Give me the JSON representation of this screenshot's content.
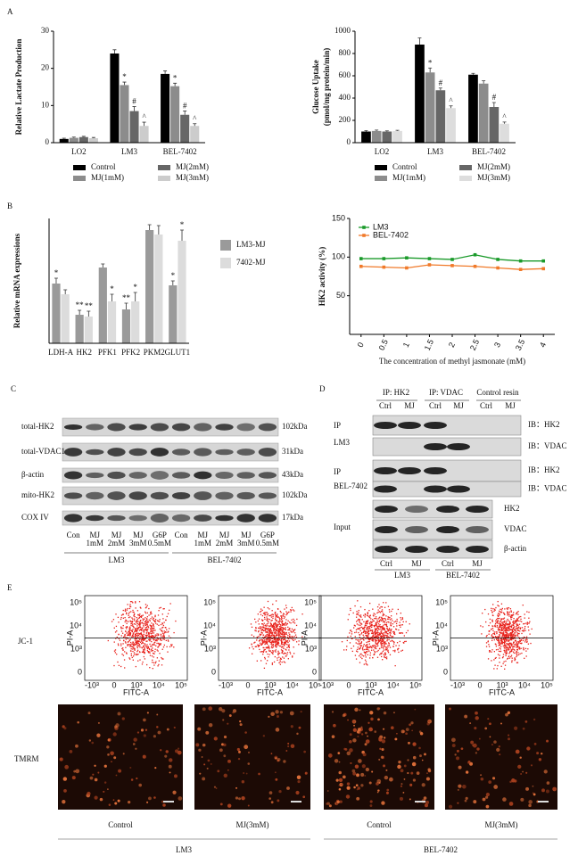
{
  "chart_data": [
    {
      "type": "bar",
      "ylabel": [
        "Relative Lactate Production"
      ],
      "categories": [
        "LO2",
        "LM3",
        "BEL-7402"
      ],
      "series": [
        {
          "name": "Control",
          "color": "#000000",
          "values": [
            1,
            24,
            18.5
          ],
          "errors": [
            0.2,
            1,
            0.8
          ],
          "marks": [
            null,
            null,
            null
          ]
        },
        {
          "name": "MJ(1mM)",
          "color": "#8c8c8c",
          "values": [
            1.3,
            15.5,
            15.2
          ],
          "errors": [
            0.2,
            0.8,
            0.8
          ],
          "marks": [
            null,
            "*",
            "*"
          ]
        },
        {
          "name": "MJ(2mM)",
          "color": "#666666",
          "values": [
            1.5,
            8.5,
            7.5
          ],
          "errors": [
            0.2,
            1.2,
            1
          ],
          "marks": [
            null,
            "#",
            "#"
          ]
        },
        {
          "name": "MJ(3mM)",
          "color": "#cccccc",
          "values": [
            1.2,
            4.5,
            4.5
          ],
          "errors": [
            0.2,
            1,
            0.6
          ],
          "marks": [
            null,
            "^",
            "^"
          ]
        }
      ],
      "ylim": [
        0,
        30
      ],
      "yticks": [
        0,
        10,
        20,
        30
      ],
      "legend": "bottom"
    },
    {
      "type": "bar",
      "ylabel": [
        "Glucose Uptake",
        "(pmol/mg protein/min)"
      ],
      "categories": [
        "LO2",
        "LM3",
        "BEL-7402"
      ],
      "series": [
        {
          "name": "Control",
          "color": "#000000",
          "values": [
            100,
            880,
            610
          ],
          "errors": [
            8,
            60,
            12
          ],
          "marks": [
            null,
            null,
            null
          ]
        },
        {
          "name": "MJ(1mM)",
          "color": "#8c8c8c",
          "values": [
            105,
            630,
            530
          ],
          "errors": [
            8,
            40,
            25
          ],
          "marks": [
            null,
            "*",
            null
          ]
        },
        {
          "name": "MJ(2mM)",
          "color": "#666666",
          "values": [
            100,
            470,
            320
          ],
          "errors": [
            6,
            20,
            40
          ],
          "marks": [
            null,
            "#",
            "#"
          ]
        },
        {
          "name": "MJ(3mM)",
          "color": "#dddddd",
          "values": [
            105,
            310,
            170
          ],
          "errors": [
            6,
            20,
            15
          ],
          "marks": [
            null,
            "^",
            "^"
          ]
        }
      ],
      "ylim": [
        0,
        1000
      ],
      "yticks": [
        0,
        200,
        400,
        600,
        800,
        1000
      ],
      "legend": "bottom"
    },
    {
      "type": "bar",
      "ylabel": [
        "Relative mRNA expressions"
      ],
      "categories": [
        "LDH-A",
        "HK2",
        "PFK1",
        "PFK2",
        "PKM2",
        "GLUT1"
      ],
      "series": [
        {
          "name": "LM3-MJ",
          "color": "#9a9a9a",
          "values": [
            0.67,
            0.32,
            0.85,
            0.38,
            1.27,
            0.65
          ],
          "errors": [
            0.06,
            0.05,
            0.04,
            0.07,
            0.06,
            0.05
          ],
          "marks": [
            "*",
            "**",
            null,
            "**",
            null,
            "*"
          ]
        },
        {
          "name": "7402-MJ",
          "color": "#dcdcdc",
          "values": [
            0.55,
            0.3,
            0.47,
            0.47,
            1.22,
            1.15
          ],
          "errors": [
            0.05,
            0.06,
            0.08,
            0.1,
            0.1,
            0.12
          ],
          "marks": [
            null,
            "**",
            "*",
            "*",
            null,
            "*"
          ]
        }
      ],
      "ylim": [
        0,
        1.4
      ],
      "legend": "right"
    },
    {
      "type": "line",
      "ylabel": [
        "HK2 activity (%)"
      ],
      "xlabel": "The concentration of methyl jasmonate (mM)",
      "x": [
        0,
        0.5,
        1,
        1.5,
        2,
        2.5,
        3,
        3.5,
        4
      ],
      "series": [
        {
          "name": "LM3",
          "color": "#1a9a2a",
          "values": [
            98,
            98,
            99,
            98,
            97,
            103,
            97,
            95,
            95
          ]
        },
        {
          "name": "BEL-7402",
          "color": "#f07a2a",
          "values": [
            88,
            87,
            86,
            90,
            89,
            88,
            86,
            84,
            85
          ]
        }
      ],
      "xlim": [
        -0.25,
        4.25
      ],
      "xticks": [
        0,
        0.5,
        1,
        1.5,
        2,
        2.5,
        3,
        3.5,
        4
      ],
      "ylim": [
        0,
        150
      ],
      "yticks": [
        50,
        100,
        150
      ],
      "legend": "upper left"
    }
  ],
  "panel_labels": [
    "A",
    "B",
    "C",
    "D",
    "E"
  ],
  "blot_c": {
    "rows": [
      "total-HK2",
      "total-VDAC1",
      "β-actin",
      "mito-HK2",
      "COX IV"
    ],
    "sizes": [
      "102kDa",
      "31kDa",
      "43kDa",
      "102kDa",
      "17kDa"
    ],
    "lanes": [
      [
        "Con"
      ],
      [
        "MJ",
        "1mM"
      ],
      [
        "MJ",
        "2mM"
      ],
      [
        "MJ",
        "3mM"
      ],
      [
        "G6P",
        "0.5mM"
      ],
      [
        "Con"
      ],
      [
        "MJ",
        "1mM"
      ],
      [
        "MJ",
        "2mM"
      ],
      [
        "MJ",
        "3mM"
      ],
      [
        "G6P",
        "0.5mM"
      ]
    ],
    "groups": [
      "LM3",
      "BEL-7402"
    ]
  },
  "blot_d": {
    "headers": [
      "IP: HK2",
      "IP: VDAC",
      "Control resin"
    ],
    "lanes": [
      "Ctrl",
      "MJ"
    ],
    "left": [
      [
        "IP",
        "LM3"
      ],
      [
        "IP",
        "BEL-7402"
      ],
      [
        "Input"
      ]
    ],
    "right": [
      "IB：HK2",
      "IB：VDAC",
      "IB：HK2",
      "IB：VDAC",
      "HK2",
      "VDAC",
      "β-actin"
    ],
    "groups": [
      "LM3",
      "BEL-7402"
    ]
  },
  "flow": {
    "row_label": "JC-1",
    "y_axis": "PI-A",
    "x_axis": "FITC-A",
    "yticks": [
      "10⁵",
      "10⁴",
      "10³",
      "0"
    ],
    "xticks": [
      "-10³",
      "0",
      "10³",
      "10⁴",
      "10⁵"
    ]
  },
  "imaging": {
    "row_label": "TMRM",
    "conditions": [
      "Control",
      "MJ(3mM)",
      "Control",
      "MJ(3mM)"
    ],
    "groups": [
      "LM3",
      "BEL-7402"
    ]
  }
}
